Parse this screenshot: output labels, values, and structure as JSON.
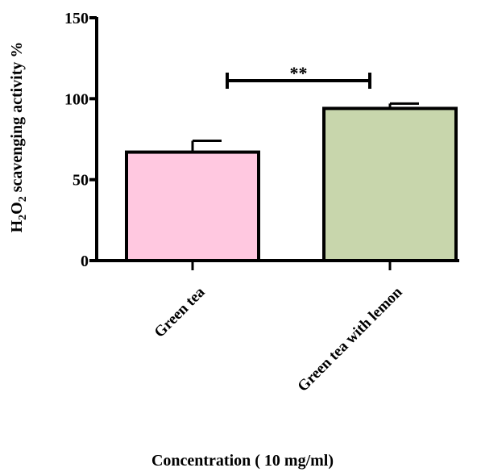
{
  "chart_data": {
    "type": "bar",
    "categories": [
      "Green tea",
      "Green tea with lemon"
    ],
    "values": [
      67,
      94
    ],
    "errors": [
      7,
      3
    ],
    "bar_colors": [
      "#ffc8e0",
      "#c8d6ac"
    ],
    "ylabel": {
      "main": "H",
      "sub1": "2",
      "mid": "O",
      "sub2": "2",
      "rest": " scavenging activity  %"
    },
    "xlabel": "Concentration ( 10 mg/ml)",
    "ylim": [
      0,
      150
    ],
    "yticks": [
      "0",
      "50",
      "100",
      "150"
    ],
    "significance": {
      "label": "**",
      "between": [
        0,
        1
      ]
    },
    "grid": false,
    "legend": "none"
  }
}
